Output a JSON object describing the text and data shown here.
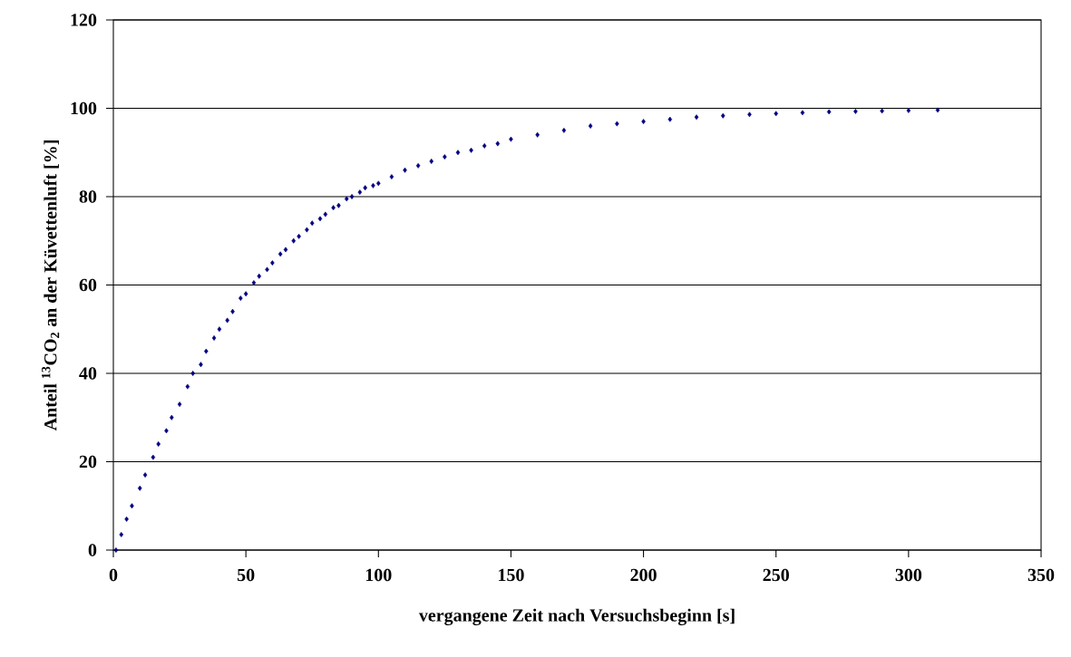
{
  "chart_data": {
    "type": "scatter",
    "xlabel": "vergangene Zeit nach Versuchsbeginn [s]",
    "ylabel": "Anteil $^{13}$CO$_{2}$ an der Küvettenluft [%]",
    "x": [
      1,
      3,
      5,
      7,
      10,
      12,
      15,
      17,
      20,
      22,
      25,
      28,
      30,
      33,
      35,
      38,
      40,
      43,
      45,
      48,
      50,
      53,
      55,
      58,
      60,
      63,
      65,
      68,
      70,
      73,
      75,
      78,
      80,
      83,
      85,
      88,
      90,
      93,
      95,
      98,
      100,
      105,
      110,
      115,
      120,
      125,
      130,
      135,
      140,
      145,
      150,
      160,
      170,
      180,
      190,
      200,
      210,
      220,
      230,
      240,
      250,
      260,
      270,
      280,
      290,
      300,
      311
    ],
    "values": [
      0,
      3.5,
      7,
      10,
      14,
      17,
      21,
      24,
      27,
      30,
      33,
      37,
      40,
      42,
      45,
      48,
      50,
      52,
      54,
      57,
      58,
      60.5,
      62,
      63.5,
      65,
      67,
      68,
      70,
      71,
      72.5,
      74,
      75,
      76,
      77.5,
      78,
      79.5,
      80,
      81,
      82,
      82.5,
      83,
      84.5,
      86,
      87,
      88,
      89,
      90,
      90.5,
      91.5,
      92,
      93,
      94,
      95,
      96,
      96.5,
      97,
      97.5,
      98,
      98.3,
      98.6,
      98.8,
      99,
      99.2,
      99.3,
      99.4,
      99.5,
      99.6
    ],
    "color": "#000080",
    "marker": "diamond",
    "grid": "y",
    "xlim": [
      0,
      350
    ],
    "ylim": [
      0,
      120
    ],
    "xticks": [
      0,
      50,
      100,
      150,
      200,
      250,
      300,
      350
    ],
    "yticks": [
      0,
      20,
      40,
      60,
      80,
      100,
      120
    ]
  }
}
